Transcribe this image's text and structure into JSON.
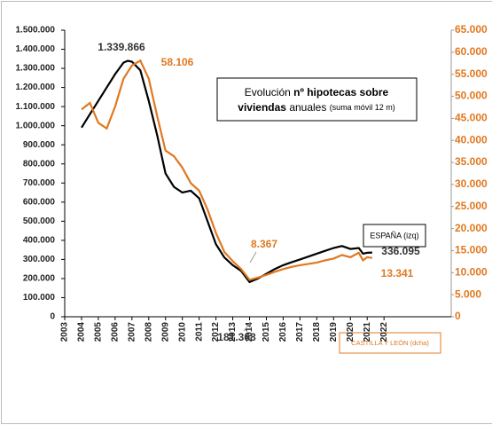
{
  "chart_data": {
    "type": "line",
    "title": {
      "line1": [
        "Evolución ",
        "nº hipotecas sobre"
      ],
      "line2": [
        "viviendas",
        " anuales ",
        "(suma móvil 12 m)"
      ]
    },
    "x": [
      2004,
      2004.5,
      2005,
      2005.5,
      2006,
      2006.5,
      2006.75,
      2007,
      2007.5,
      2008,
      2008.5,
      2009,
      2009.5,
      2010,
      2010.5,
      2011,
      2011.5,
      2012,
      2012.5,
      2013,
      2013.5,
      2014,
      2014.5,
      2015,
      2015.5,
      2016,
      2016.5,
      2017,
      2017.5,
      2018,
      2018.5,
      2019,
      2019.5,
      2020,
      2020.5,
      2020.75,
      2021,
      2021.3
    ],
    "series": [
      {
        "name": "ESPAÑA (izq)",
        "color": "#000000",
        "axis": "y",
        "values": [
          990000,
          1060000,
          1130000,
          1200000,
          1270000,
          1330000,
          1339866,
          1335000,
          1290000,
          1130000,
          950000,
          750000,
          680000,
          650000,
          660000,
          620000,
          500000,
          380000,
          310000,
          270000,
          240000,
          181368,
          200000,
          225000,
          250000,
          270000,
          285000,
          300000,
          315000,
          330000,
          345000,
          360000,
          370000,
          355000,
          360000,
          330000,
          335000,
          336095
        ]
      },
      {
        "name": "CASTILLA Y LEÓN (dcha)",
        "color": "#e07820",
        "axis": "y2",
        "values": [
          47000,
          48500,
          44000,
          42700,
          47700,
          54000,
          55500,
          57000,
          58106,
          54000,
          45500,
          37700,
          36400,
          33800,
          30300,
          28600,
          24300,
          19000,
          14700,
          12600,
          10800,
          8367,
          8900,
          9500,
          10200,
          10800,
          11300,
          11700,
          12000,
          12300,
          12800,
          13200,
          14000,
          13500,
          14500,
          12800,
          13500,
          13341
        ]
      }
    ],
    "annotations": [
      "1.339.866",
      "58.106",
      "336.095",
      "13.341",
      "8.367",
      "181.368"
    ],
    "xlim": [
      2003,
      2026
    ],
    "xticks": [
      2003,
      2004,
      2005,
      2006,
      2007,
      2008,
      2009,
      2010,
      2011,
      2012,
      2013,
      2014,
      2015,
      2016,
      2017,
      2018,
      2019,
      2020,
      2021,
      2022
    ],
    "ylim": [
      0,
      1500000
    ],
    "yticks": [
      0,
      {
        "value": 100000,
        "label": "100.000"
      },
      {
        "value": 200000,
        "label": "200.000"
      },
      {
        "value": 300000,
        "label": "300.000"
      },
      {
        "value": 400000,
        "label": "400.000"
      },
      {
        "value": 500000,
        "label": "500.000"
      },
      {
        "value": 600000,
        "label": "600.000"
      },
      {
        "value": 700000,
        "label": "700.000"
      },
      {
        "value": 800000,
        "label": "800.000"
      },
      {
        "value": 900000,
        "label": "900.000"
      },
      {
        "value": 1000000,
        "label": "1.000.000"
      },
      {
        "value": 1100000,
        "label": "1.100.000"
      },
      {
        "value": 1200000,
        "label": "1.200.000"
      },
      {
        "value": 1300000,
        "label": "1.300.000"
      },
      {
        "value": 1400000,
        "label": "1.400.000"
      },
      {
        "value": 1500000,
        "label": "1.500.000"
      }
    ],
    "y2lim": [
      0,
      65000
    ],
    "y2ticks": [
      0,
      {
        "value": 5000,
        "label": "5.000"
      },
      {
        "value": 10000,
        "label": "10.000"
      },
      {
        "value": 15000,
        "label": "15.000"
      },
      {
        "value": 20000,
        "label": "20.000"
      },
      {
        "value": 25000,
        "label": "25.000"
      },
      {
        "value": 30000,
        "label": "30.000"
      },
      {
        "value": 35000,
        "label": "35.000"
      },
      {
        "value": 40000,
        "label": "40.000"
      },
      {
        "value": 45000,
        "label": "45.000"
      },
      {
        "value": 50000,
        "label": "50.000"
      },
      {
        "value": 55000,
        "label": "55.000"
      },
      {
        "value": 60000,
        "label": "60.000"
      },
      {
        "value": 65000,
        "label": "65.000"
      }
    ],
    "grid": false
  }
}
